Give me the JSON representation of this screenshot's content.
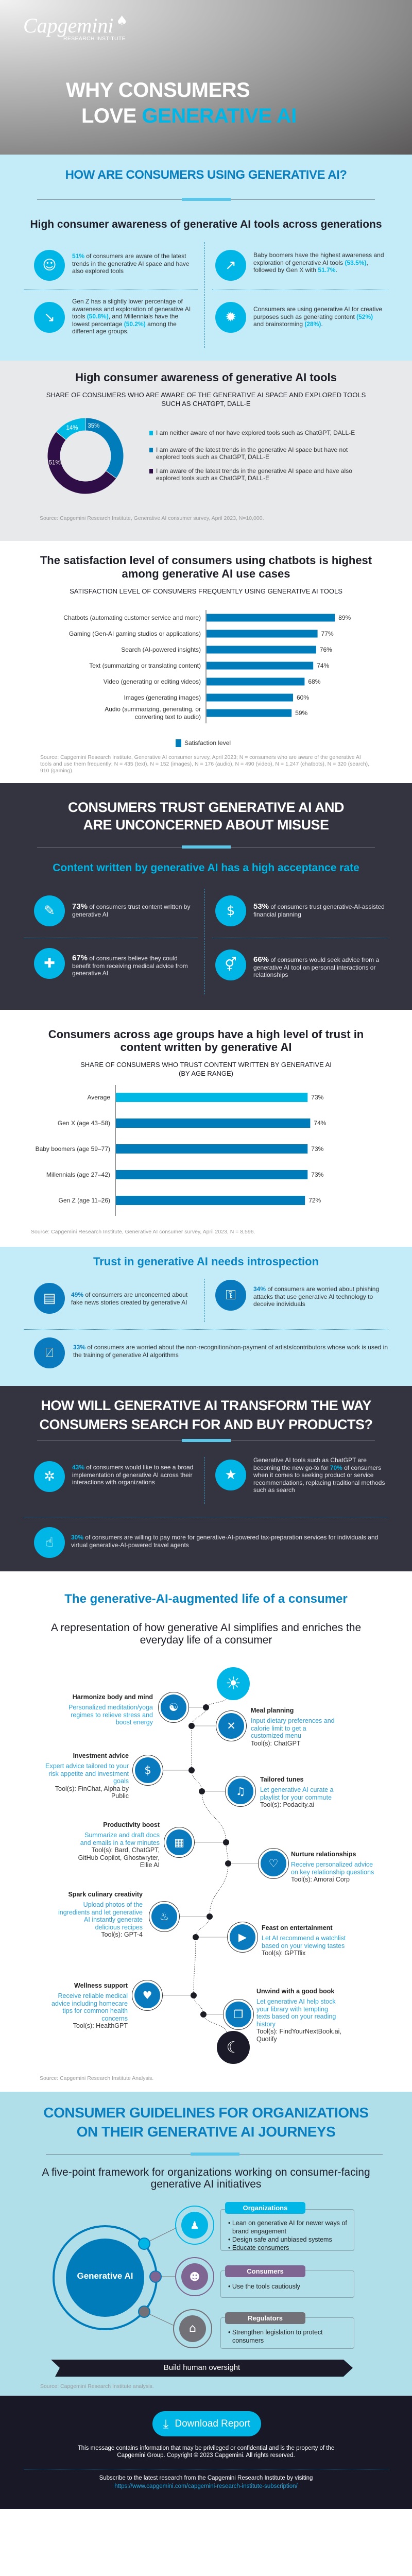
{
  "hero": {
    "logo_name": "Capgemini",
    "logo_sub": "RESEARCH INSTITUTE",
    "title_line1": "WHY CONSUMERS",
    "title_line2_plain": "LOVE ",
    "title_line2_accent": "GENERATIVE AI"
  },
  "usage": {
    "heading": "HOW ARE CONSUMERS USING GENERATIVE AI?",
    "subheading": "High consumer awareness of generative AI tools across generations",
    "stats": [
      {
        "icon": "person-radiating-icon",
        "glyph": "☺",
        "segments": [
          {
            "t": "51%",
            "hl": true
          },
          {
            "t": " of consumers are aware of the latest trends in the generative AI space and have also explored tools"
          }
        ]
      },
      {
        "icon": "trend-up-icon",
        "glyph": "↗",
        "segments": [
          {
            "t": "Baby boomers have the highest awareness and exploration of generative AI tools "
          },
          {
            "t": "(53.5%)",
            "hl": true
          },
          {
            "t": ", followed by Gen X with "
          },
          {
            "t": "51.7%",
            "hl": true
          },
          {
            "t": "."
          }
        ]
      },
      {
        "icon": "trend-down-icon",
        "glyph": "↘",
        "segments": [
          {
            "t": "Gen Z has a slightly lower percentage of awareness and exploration of generative AI tools "
          },
          {
            "t": "(50.8%)",
            "hl": true
          },
          {
            "t": ", and Millennials have the lowest percentage "
          },
          {
            "t": "(50.2%)",
            "hl": true
          },
          {
            "t": " among the different age groups."
          }
        ]
      },
      {
        "icon": "lightbulb-gear-icon",
        "glyph": "✹",
        "segments": [
          {
            "t": "Consumers are using generative AI for creative purposes such as generating content "
          },
          {
            "t": "(52%)",
            "hl": true
          },
          {
            "t": " and brainstorming "
          },
          {
            "t": "(28%)",
            "hl": true
          },
          {
            "t": "."
          }
        ]
      }
    ]
  },
  "awareness": {
    "title": "High consumer awareness of generative AI tools",
    "source": "Source: Capgemini Research Institute, Generative AI consumer survey, April 2023, N=10,000."
  },
  "satisfaction": {
    "title": "The satisfaction level of consumers using chatbots is highest among generative AI use cases",
    "source": "Source: Capgemini Research Institute, Generative AI consumer survey, April 2023; N = consumers who are aware of the generative AI tools and use them frequently; N = 435 (text), N = 152 (images), N = 176 (audio), N = 490 (video), N = 1,247 (chatbots), N = 320 (search), 910 (gaming)."
  },
  "trust": {
    "heading": "CONSUMERS TRUST GENERATIVE AI AND ARE UNCONCERNED ABOUT MISUSE",
    "subheading": "Content written by generative AI has a high acceptance rate",
    "stats": [
      {
        "icon": "pen-tablet-icon",
        "glyph": "✎",
        "segments": [
          {
            "t": "73%",
            "b": true
          },
          {
            "t": " of consumers trust content written by generative AI"
          }
        ]
      },
      {
        "icon": "money-exchange-icon",
        "glyph": "$",
        "segments": [
          {
            "t": "53%",
            "b": true
          },
          {
            "t": " of consumers trust generative-AI-assisted financial planning"
          }
        ]
      },
      {
        "icon": "medical-drop-icon",
        "glyph": "✚",
        "segments": [
          {
            "t": "67%",
            "b": true
          },
          {
            "t": " of consumers believe they could benefit from receiving medical advice from generative AI"
          }
        ]
      },
      {
        "icon": "gender-symbols-icon",
        "glyph": "⚥",
        "segments": [
          {
            "t": "66%",
            "b": true
          },
          {
            "t": " of consumers would seek advice from a generative AI tool on personal interactions or relationships"
          }
        ]
      }
    ]
  },
  "trust_age": {
    "title": "Consumers across age groups have a high level of trust in content written by generative AI",
    "source": "Source: Capgemini Research Institute, Generative AI consumer survey, April 2023, N = 8,596."
  },
  "introspection": {
    "heading": "Trust in generative AI needs introspection",
    "stats": [
      {
        "icon": "fake-news-icon",
        "glyph": "▤",
        "segments": [
          {
            "t": "49%",
            "hl": true
          },
          {
            "t": " of consumers are unconcerned about fake news stories created by generative AI"
          }
        ]
      },
      {
        "icon": "phishing-icon",
        "glyph": "⚿",
        "segments": [
          {
            "t": "34%",
            "hl": true
          },
          {
            "t": " of consumers are worried about phishing attacks that use generative AI technology to deceive individuals"
          }
        ]
      },
      {
        "icon": "no-artwork-icon",
        "glyph": "⍁",
        "segments": [
          {
            "t": "33%",
            "hl": true
          },
          {
            "t": " of consumers are worried about the non-recognition/non-payment of artists/contributors whose work is used in the training of generative AI algorithms"
          }
        ]
      }
    ]
  },
  "transform": {
    "heading": "HOW WILL GENERATIVE AI TRANSFORM THE WAY CONSUMERS SEARCH FOR AND BUY PRODUCTS?",
    "stats": [
      {
        "icon": "network-icon",
        "glyph": "✲",
        "segments": [
          {
            "t": "43%",
            "hl": true
          },
          {
            "t": " of consumers would like to see a broad implementation of generative AI across their interactions with organizations"
          }
        ]
      },
      {
        "icon": "star-chat-icon",
        "glyph": "★",
        "segments": [
          {
            "t": "Generative AI tools such as ChatGPT are becoming the new go-to for "
          },
          {
            "t": "70%",
            "hl": true
          },
          {
            "t": " of consumers when it comes to seeking product or service recommendations, replacing traditional methods such as search"
          }
        ]
      },
      {
        "icon": "tap-pay-icon",
        "glyph": "☝",
        "segments": [
          {
            "t": "30%",
            "hl": true
          },
          {
            "t": " of consumers are willing to pay more for generative-AI-powered tax-preparation services for individuals and virtual generative-AI-powered travel agents"
          }
        ]
      }
    ]
  },
  "life": {
    "heading": "The generative-AI-augmented life of a consumer",
    "subheading": "A representation of how generative AI simplifies and enriches the everyday life of a consumer",
    "source": "Source: Capgemini Research Institute Analysis.",
    "items": [
      {
        "title": "Harmonize body and mind",
        "desc": "Personalized meditation/yoga regimes to relieve stress and boost energy",
        "tools": "",
        "icon": "meditation-icon",
        "glyph": "☯"
      },
      {
        "title": "Meal planning",
        "desc": "Input dietary preferences and calorie limit to get a customized menu",
        "tools": "Tool(s): ChatGPT",
        "icon": "fork-knife-icon",
        "glyph": "✕"
      },
      {
        "title": "Investment advice",
        "desc": "Expert advice tailored to your risk appetite and investment goals",
        "tools": "Tool(s): FinChat, Alpha by Public",
        "icon": "money-bag-hand-icon",
        "glyph": "$"
      },
      {
        "title": "Tailored tunes",
        "desc": "Let generative AI curate a playlist for your commute",
        "tools": "Tool(s): Podacity.ai",
        "icon": "headphones-icon",
        "glyph": "♫"
      },
      {
        "title": "Productivity boost",
        "desc": "Summarize and draft docs and emails in a few minutes",
        "tools": "Tool(s): Bard, ChatGPT, GitHub Copilot, Ghostwryter, Ellie AI",
        "icon": "monitor-chat-icon",
        "glyph": "▦"
      },
      {
        "title": "Nurture relationships",
        "desc": "Receive personalized advice on key relationship questions",
        "tools": "Tool(s): Amorai Corp",
        "icon": "couple-heart-icon",
        "glyph": "♡"
      },
      {
        "title": "Spark culinary creativity",
        "desc": "Upload photos of the ingredients and let generative AI instantly generate delicious recipes",
        "tools": "Tool(s): GPT-4",
        "icon": "grocery-bag-icon",
        "glyph": "♨"
      },
      {
        "title": "Feast on entertainment",
        "desc": "Let AI recommend a watchlist based on your viewing tastes",
        "tools": "Tool(s): GPTflix",
        "icon": "cinema-icon",
        "glyph": "▶"
      },
      {
        "title": "Wellness support",
        "desc": "Receive reliable medical advice including homecare tips for common health concerns",
        "tools": "Tool(s): HealthGPT",
        "icon": "heart-pulse-icon",
        "glyph": "♥"
      },
      {
        "title": "Unwind with a good book",
        "desc": "Let generative AI help stock your library with tempting texts based on your reading history",
        "tools": "Tool(s): FindYourNextBook.ai, Quotify",
        "icon": "open-book-icon",
        "glyph": "❐"
      }
    ]
  },
  "guidelines": {
    "heading": "CONSUMER GUIDELINES FOR ORGANIZATIONS ON THEIR GENERATIVE AI JOURNEYS",
    "subheading": "A five-point framework for organizations working on consumer-facing generative AI initiatives",
    "center_label": "Generative AI",
    "groups": [
      {
        "name": "Organizations",
        "color": "#00b6e6",
        "icon": "meeting-icon",
        "glyph": "♟",
        "points": [
          "Lean on generative AI for newer ways of brand engagement",
          "Design safe and unbiased systems",
          "Educate consumers"
        ]
      },
      {
        "name": "Consumers",
        "color": "#7f6591",
        "icon": "people-group-icon",
        "glyph": "☻",
        "points": [
          "Use the tools cautiously"
        ]
      },
      {
        "name": "Regulators",
        "color": "#737178",
        "icon": "institution-icon",
        "glyph": "⌂",
        "points": [
          "Strengthen legislation to protect consumers"
        ]
      }
    ],
    "banner": "Build human oversight",
    "source": "Source: Capgemini Research Institute analysis."
  },
  "footer": {
    "download_label": "Download Report",
    "disclaimer": "This message contains information that may be privileged or confidential and is the property of the Capgemini Group. Copyright © 2023 Capgemini. All rights reserved.",
    "subscribe_text": "Subscribe to the latest research from the Capgemini Research Institute by visiting",
    "subscribe_link": "https://www.capgemini.com/capgemini-research-institute-subscription/"
  },
  "colors": {
    "cyan": "#00b6e6",
    "blue": "#007cba",
    "purple": "#2f0d47",
    "dark_bg": "#343340",
    "light_blue_bg": "#c4ecf8"
  },
  "chart_data": [
    {
      "type": "pie",
      "title": "SHARE OF CONSUMERS WHO ARE AWARE OF THE GENERATIVE AI SPACE AND EXPLORED TOOLS SUCH AS CHATGPT, DALL-E",
      "categories": [
        "I am neither aware of nor have explored tools such as ChatGPT, DALL-E",
        "I am aware of the latest trends in the generative AI space but have not explored tools such as ChatGPT, DALL-E",
        "I am aware of the latest trends in the generative AI space and have also explored tools such as ChatGPT, DALL-E"
      ],
      "values": [
        14,
        35,
        51
      ],
      "labels": [
        "14%",
        "35%",
        "51%"
      ],
      "colors": [
        "#00b8e4",
        "#007cba",
        "#2f0d47"
      ],
      "donut": true,
      "legend": "right"
    },
    {
      "type": "bar",
      "orientation": "horizontal",
      "title": "SATISFACTION LEVEL OF CONSUMERS FREQUENTLY USING GENERATIVE AI TOOLS",
      "categories": [
        "Chatbots (automating customer service and more)",
        "Gaming (Gen-AI gaming studios or applications)",
        "Search (AI-powered insights)",
        "Text (summarizing or translating content)",
        "Video (generating or editing videos)",
        "Images (generating images)",
        "Audio (summarizing, generating, or converting text to audio)"
      ],
      "values": [
        89,
        77,
        76,
        74,
        68,
        60,
        59
      ],
      "labels": [
        "89%",
        "77%",
        "76%",
        "74%",
        "68%",
        "60%",
        "59%"
      ],
      "series_name": "Satisfaction level",
      "legend": "bottom",
      "xlim": [
        0,
        100
      ]
    },
    {
      "type": "bar",
      "orientation": "horizontal",
      "title": "SHARE OF CONSUMERS WHO TRUST CONTENT WRITTEN BY GENERATIVE AI (BY AGE RANGE)",
      "categories": [
        "Average",
        "Gen X (age 43–58)",
        "Baby boomers (age 59–77)",
        "Millennials (age 27–42)",
        "Gen Z (age 11–26)"
      ],
      "values": [
        73,
        74,
        73,
        73,
        72
      ],
      "labels": [
        "73%",
        "74%",
        "73%",
        "73%",
        "72%"
      ],
      "xlim": [
        0,
        100
      ]
    }
  ]
}
